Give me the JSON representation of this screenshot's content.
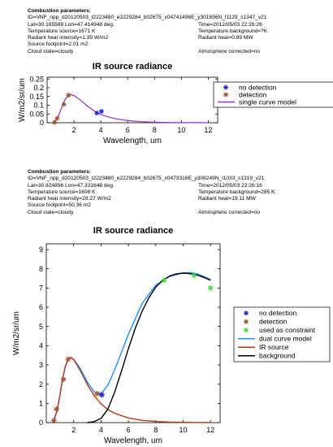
{
  "panels": [
    {
      "params": {
        "heading": "Combustion parameters:",
        "id_line": "ID=VNF_npp_d20120503_t2223480_e2229284_b02675_x04741496E_y301656N_l1129_s1347_v21",
        "rows": [
          {
            "left": "Lat=30.165588 Lon=47.414948 deg.",
            "right": "Time=2012/05/03 22:26:26"
          },
          {
            "left": "Temperature source=1671 K",
            "right": "Temperature background=?K"
          },
          {
            "left": "Radiant heat intensity=1.39 W/m2",
            "right": "Radiant heat=0.89 MW"
          },
          {
            "left": "Source footprint=2.01 m2",
            "right": ""
          },
          {
            "left": "Cloud state=cloudy",
            "right": "Atmosphere corrected=no"
          }
        ]
      }
    },
    {
      "params": {
        "heading": "Combustion parameters:",
        "id_line": "ID=VNF_npp_d20120503_t2223480_e2229284_b02675_x0473316E_y308249N_l1033_s1319_v21",
        "rows": [
          {
            "left": "Lat=30.824896 Lon=47.331646 deg.",
            "right": "Time=2012/05/03 22:26:16"
          },
          {
            "left": "Temperature source=1608 K",
            "right": "Temperature background=285 K"
          },
          {
            "left": "Radiant heat intensity=29.27 W/m2",
            "right": "Radiant heat=19.11 MW"
          },
          {
            "left": "Source footprint=50.36 m2",
            "right": ""
          },
          {
            "left": "Cloud state=cloudy",
            "right": "Atmosphere corrected=no"
          }
        ]
      }
    }
  ],
  "chart_data": [
    {
      "type": "line",
      "title": "IR source radiance",
      "xlabel": "Wavelength, um",
      "ylabel": "W/m2/sr/um",
      "xlim": [
        0,
        12.7
      ],
      "ylim": [
        0,
        0.26
      ],
      "xticks": [
        2,
        4,
        6,
        8,
        10,
        12
      ],
      "yticks": [
        0,
        0.05,
        0.1,
        0.15,
        0.2,
        0.25
      ],
      "ytick_labels": [
        "0",
        "0.05",
        "0.1",
        "0.15",
        "0.2",
        "0.25"
      ],
      "legend_position": "right",
      "legend": [
        {
          "label": "no detection",
          "color": "#1f1fd6",
          "marker": "asterisk"
        },
        {
          "label": "detection",
          "color": "#a0522d",
          "marker": "asterisk"
        },
        {
          "label": "single curve model",
          "color": "#9b30c8",
          "marker": "line"
        }
      ],
      "series": [
        {
          "name": "no detection",
          "kind": "points",
          "color": "#1f1fd6",
          "points": [
            [
              3.7,
              0.055
            ],
            [
              4.05,
              0.065
            ]
          ]
        },
        {
          "name": "detection",
          "kind": "points",
          "color": "#a0522d",
          "points": [
            [
              0.55,
              0.002
            ],
            [
              0.75,
              0.025
            ],
            [
              1.25,
              0.105
            ],
            [
              1.6,
              0.157
            ]
          ]
        },
        {
          "name": "single curve model",
          "kind": "line",
          "color": "#9b30c8",
          "x": [
            0.5,
            0.8,
            1.0,
            1.2,
            1.4,
            1.6,
            1.8,
            2.0,
            2.2,
            2.5,
            3.0,
            3.5,
            4.0,
            4.5,
            5.0,
            6.0,
            7.0,
            8.0,
            9.0,
            10.0,
            11.0,
            12.0
          ],
          "y": [
            0.0,
            0.03,
            0.07,
            0.11,
            0.14,
            0.157,
            0.16,
            0.155,
            0.145,
            0.128,
            0.095,
            0.068,
            0.048,
            0.034,
            0.024,
            0.012,
            0.006,
            0.003,
            0.0015,
            0.0008,
            0.0004,
            0.0002
          ]
        }
      ]
    },
    {
      "type": "line",
      "title": "IR source radiance",
      "xlabel": "Wavelength, um",
      "ylabel": "W/m2/sr/um",
      "xlim": [
        0,
        12.7
      ],
      "ylim": [
        0,
        9.3
      ],
      "xticks": [
        2,
        4,
        6,
        8,
        10,
        12
      ],
      "yticks": [
        0,
        1,
        2,
        3,
        4,
        5,
        6,
        7,
        8,
        9
      ],
      "ytick_labels": [
        "0",
        "1",
        "2",
        "3",
        "4",
        "5",
        "6",
        "7",
        "8",
        "9"
      ],
      "legend_position": "right",
      "legend": [
        {
          "label": "no detection",
          "color": "#1f1fd6",
          "marker": "asterisk"
        },
        {
          "label": "detection",
          "color": "#a0522d",
          "marker": "asterisk"
        },
        {
          "label": "used as constraint",
          "color": "#3ddc3d",
          "marker": "asterisk"
        },
        {
          "label": "dual curve model",
          "color": "#1e90ff",
          "marker": "line"
        },
        {
          "label": "IR source",
          "color": "#b03a1c",
          "marker": "line"
        },
        {
          "label": "background",
          "color": "#000000",
          "marker": "line"
        }
      ],
      "series": [
        {
          "name": "dual curve model",
          "kind": "line",
          "color": "#1e90ff",
          "x": [
            0.5,
            0.8,
            1.0,
            1.2,
            1.4,
            1.6,
            1.8,
            2.0,
            2.2,
            2.5,
            3.0,
            3.5,
            4.0,
            4.5,
            5.0,
            6.0,
            7.0,
            8.0,
            9.0,
            10.0,
            10.5,
            11.0,
            12.0
          ],
          "y": [
            0.0,
            0.65,
            1.45,
            2.3,
            2.95,
            3.3,
            3.4,
            3.3,
            3.1,
            2.8,
            2.1,
            1.6,
            1.5,
            1.95,
            2.75,
            4.6,
            6.2,
            7.15,
            7.6,
            7.78,
            7.8,
            7.75,
            7.45
          ]
        },
        {
          "name": "IR source",
          "kind": "line",
          "color": "#b03a1c",
          "x": [
            0.5,
            0.8,
            1.0,
            1.2,
            1.4,
            1.6,
            1.8,
            2.0,
            2.2,
            2.5,
            3.0,
            3.5,
            4.0,
            4.5,
            5.0,
            6.0,
            7.0,
            8.0,
            9.0,
            10.0,
            11.0,
            12.0
          ],
          "y": [
            0.0,
            0.65,
            1.45,
            2.3,
            2.95,
            3.3,
            3.38,
            3.27,
            3.05,
            2.68,
            1.98,
            1.4,
            0.98,
            0.68,
            0.48,
            0.24,
            0.12,
            0.06,
            0.03,
            0.015,
            0.008,
            0.004
          ]
        },
        {
          "name": "background",
          "kind": "line",
          "color": "#000000",
          "x": [
            3.0,
            3.5,
            4.0,
            4.5,
            5.0,
            5.5,
            6.0,
            6.5,
            7.0,
            7.5,
            8.0,
            8.5,
            9.0,
            9.5,
            10.0,
            10.5,
            11.0,
            11.5,
            12.0
          ],
          "y": [
            0.0,
            0.05,
            0.22,
            0.7,
            1.6,
            2.7,
            3.85,
            4.9,
            5.8,
            6.5,
            7.05,
            7.4,
            7.62,
            7.74,
            7.78,
            7.75,
            7.68,
            7.56,
            7.4
          ]
        },
        {
          "name": "detection",
          "kind": "points",
          "color": "#a0522d",
          "points": [
            [
              0.55,
              0.1
            ],
            [
              0.75,
              0.7
            ],
            [
              1.25,
              2.25
            ],
            [
              1.6,
              3.3
            ],
            [
              3.7,
              1.5
            ],
            [
              4.05,
              1.45
            ]
          ]
        },
        {
          "name": "no detection",
          "kind": "points",
          "color": "#1f1fd6",
          "points": [
            [
              4.05,
              1.45
            ]
          ]
        },
        {
          "name": "used as constraint",
          "kind": "points",
          "color": "#3ddc3d",
          "points": [
            [
              8.6,
              7.4
            ],
            [
              10.8,
              7.65
            ],
            [
              12.0,
              7.0
            ]
          ]
        }
      ]
    }
  ]
}
